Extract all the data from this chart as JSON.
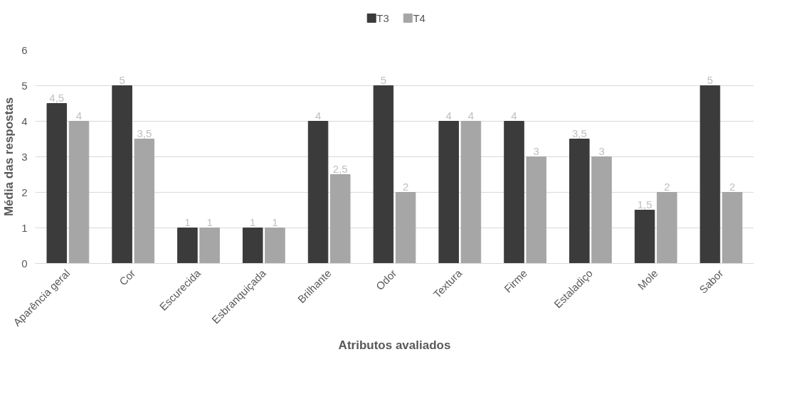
{
  "chart_data": {
    "type": "bar",
    "xlabel": "Atributos avaliados",
    "ylabel": "Média das respostas",
    "categories": [
      "Aparência geral",
      "Cor",
      "Escurecida",
      "Esbranquiçada",
      "Brilhante",
      "Odor",
      "Textura",
      "Firme",
      "Estaladiço",
      "Mole",
      "Sabor"
    ],
    "series": [
      {
        "name": "T3",
        "color": "#3b3b3b",
        "values": [
          4.5,
          5,
          1,
          1,
          4,
          5,
          4,
          4,
          3.5,
          1.5,
          5
        ],
        "value_labels": [
          "4,5",
          "5",
          "1",
          "1",
          "4",
          "5",
          "4",
          "4",
          "3,5",
          "1,5",
          "5"
        ]
      },
      {
        "name": "T4",
        "color": "#a6a6a6",
        "values": [
          4,
          3.5,
          1,
          1,
          2.5,
          2,
          4,
          3,
          3,
          2,
          2
        ],
        "value_labels": [
          "4",
          "3,5",
          "1",
          "1",
          "2,5",
          "2",
          "4",
          "3",
          "3",
          "2",
          "2"
        ]
      }
    ],
    "ylim": [
      0,
      6
    ],
    "yticks": [
      0,
      1,
      2,
      3,
      4,
      5,
      6
    ],
    "grid": "y",
    "legend": "top"
  }
}
